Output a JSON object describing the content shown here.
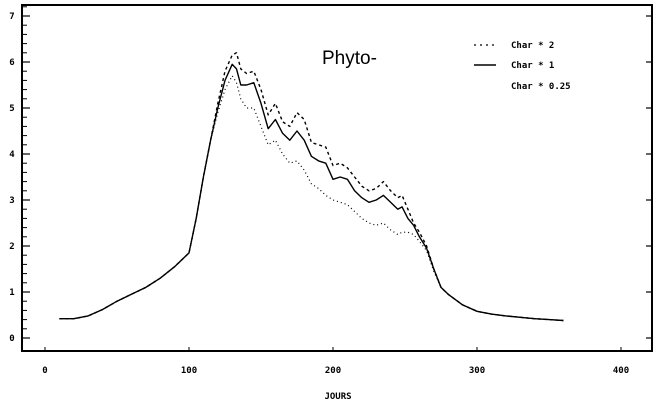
{
  "chart_data": {
    "type": "line",
    "title": "Phyto-",
    "xlabel": "JOURS",
    "ylabel": "",
    "xlim": [
      0,
      420
    ],
    "ylim": [
      -0.3,
      7.2
    ],
    "grid": false,
    "legend_position": "upper right",
    "x_ticks": [
      "0",
      "100",
      "200",
      "300",
      "400"
    ],
    "y_ticks": [
      "0",
      "1",
      "2",
      "3",
      "4",
      "5",
      "6",
      "7"
    ],
    "x": [
      10,
      20,
      30,
      40,
      50,
      60,
      70,
      80,
      90,
      100,
      105,
      110,
      115,
      120,
      125,
      130,
      133,
      136,
      140,
      145,
      150,
      155,
      160,
      165,
      170,
      175,
      180,
      185,
      190,
      195,
      200,
      205,
      210,
      215,
      220,
      225,
      230,
      235,
      240,
      245,
      248,
      252,
      256,
      260,
      265,
      270,
      275,
      280,
      290,
      300,
      310,
      320,
      330,
      340,
      350,
      360
    ],
    "series": [
      {
        "name": "Char * 2",
        "style": "dash-dot",
        "values": [
          0.42,
          0.42,
          0.48,
          0.62,
          0.8,
          0.95,
          1.1,
          1.3,
          1.55,
          1.85,
          2.6,
          3.5,
          4.3,
          5.1,
          5.8,
          6.15,
          6.2,
          5.85,
          5.75,
          5.8,
          5.4,
          4.85,
          5.1,
          4.7,
          4.6,
          4.9,
          4.75,
          4.25,
          4.2,
          4.15,
          3.75,
          3.8,
          3.7,
          3.5,
          3.3,
          3.2,
          3.25,
          3.4,
          3.2,
          3.05,
          3.1,
          2.8,
          2.5,
          2.3,
          2.0,
          1.5,
          1.1,
          0.95,
          0.72,
          0.58,
          0.52,
          0.48,
          0.45,
          0.42,
          0.4,
          0.38
        ]
      },
      {
        "name": "Char * 1",
        "style": "solid",
        "values": [
          0.42,
          0.42,
          0.48,
          0.62,
          0.8,
          0.95,
          1.1,
          1.3,
          1.55,
          1.85,
          2.6,
          3.5,
          4.3,
          5.0,
          5.6,
          5.95,
          5.85,
          5.5,
          5.5,
          5.55,
          5.1,
          4.55,
          4.75,
          4.45,
          4.3,
          4.5,
          4.3,
          3.95,
          3.85,
          3.8,
          3.45,
          3.5,
          3.45,
          3.2,
          3.05,
          2.95,
          3.0,
          3.1,
          2.95,
          2.8,
          2.85,
          2.6,
          2.45,
          2.2,
          1.95,
          1.5,
          1.1,
          0.95,
          0.72,
          0.58,
          0.52,
          0.48,
          0.45,
          0.42,
          0.4,
          0.38
        ]
      },
      {
        "name": "Char * 0.25",
        "style": "dotted",
        "values": [
          0.42,
          0.42,
          0.48,
          0.62,
          0.8,
          0.95,
          1.1,
          1.3,
          1.55,
          1.85,
          2.6,
          3.5,
          4.3,
          4.9,
          5.4,
          5.7,
          5.55,
          5.2,
          5.0,
          5.0,
          4.6,
          4.2,
          4.3,
          4.0,
          3.8,
          3.85,
          3.65,
          3.35,
          3.25,
          3.1,
          3.0,
          2.95,
          2.9,
          2.75,
          2.6,
          2.5,
          2.45,
          2.5,
          2.35,
          2.25,
          2.3,
          2.3,
          2.25,
          2.1,
          1.9,
          1.45,
          1.1,
          0.95,
          0.72,
          0.58,
          0.52,
          0.48,
          0.45,
          0.42,
          0.4,
          0.38
        ]
      }
    ]
  },
  "labels": {
    "title": "Phyto-",
    "xlabel": "JOURS",
    "legend": [
      "Char * 2",
      "Char * 1",
      "Char * 0.25"
    ],
    "x_ticks": [
      "0",
      "100",
      "200",
      "300",
      "400"
    ],
    "y_ticks": [
      "0",
      "1",
      "2",
      "3",
      "4",
      "5",
      "6",
      "7"
    ]
  }
}
